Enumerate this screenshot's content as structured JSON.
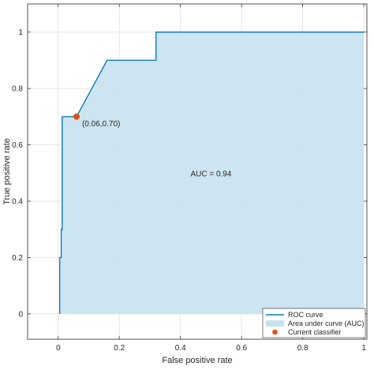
{
  "chart_data": {
    "type": "line",
    "xlabel": "False positive rate",
    "ylabel": "True positive rate",
    "xlim": [
      -0.1,
      1.01
    ],
    "ylim": [
      -0.09,
      1.1
    ],
    "xticks": [
      "0",
      "0.2",
      "0.4",
      "0.6",
      "0.8",
      "1"
    ],
    "yticks": [
      "0",
      "0.2",
      "0.4",
      "0.6",
      "0.8",
      "1"
    ],
    "grid": true,
    "legend": "bottom-right",
    "series": [
      {
        "name": "ROC curve",
        "kind": "line",
        "color": "#0072bd",
        "x": [
          0.005,
          0.005,
          0.01,
          0.01,
          0.013,
          0.013,
          0.02,
          0.06,
          0.16,
          0.32,
          0.32,
          1.0
        ],
        "y": [
          0,
          0.2,
          0.2,
          0.3,
          0.3,
          0.7,
          0.7,
          0.7,
          0.9,
          0.9,
          1.0,
          1.0
        ]
      },
      {
        "name": "Area under curve (AUC)",
        "kind": "area",
        "color": "#c8e2f0"
      },
      {
        "name": "Current classifier",
        "kind": "scatter",
        "color": "#d95319",
        "x": [
          0.06
        ],
        "y": [
          0.7
        ]
      }
    ],
    "annotations": {
      "point_label": "(0.06,0.70)",
      "auc_label": "AUC = 0.94",
      "auc_x": 0.5,
      "auc_y": 0.5
    }
  }
}
